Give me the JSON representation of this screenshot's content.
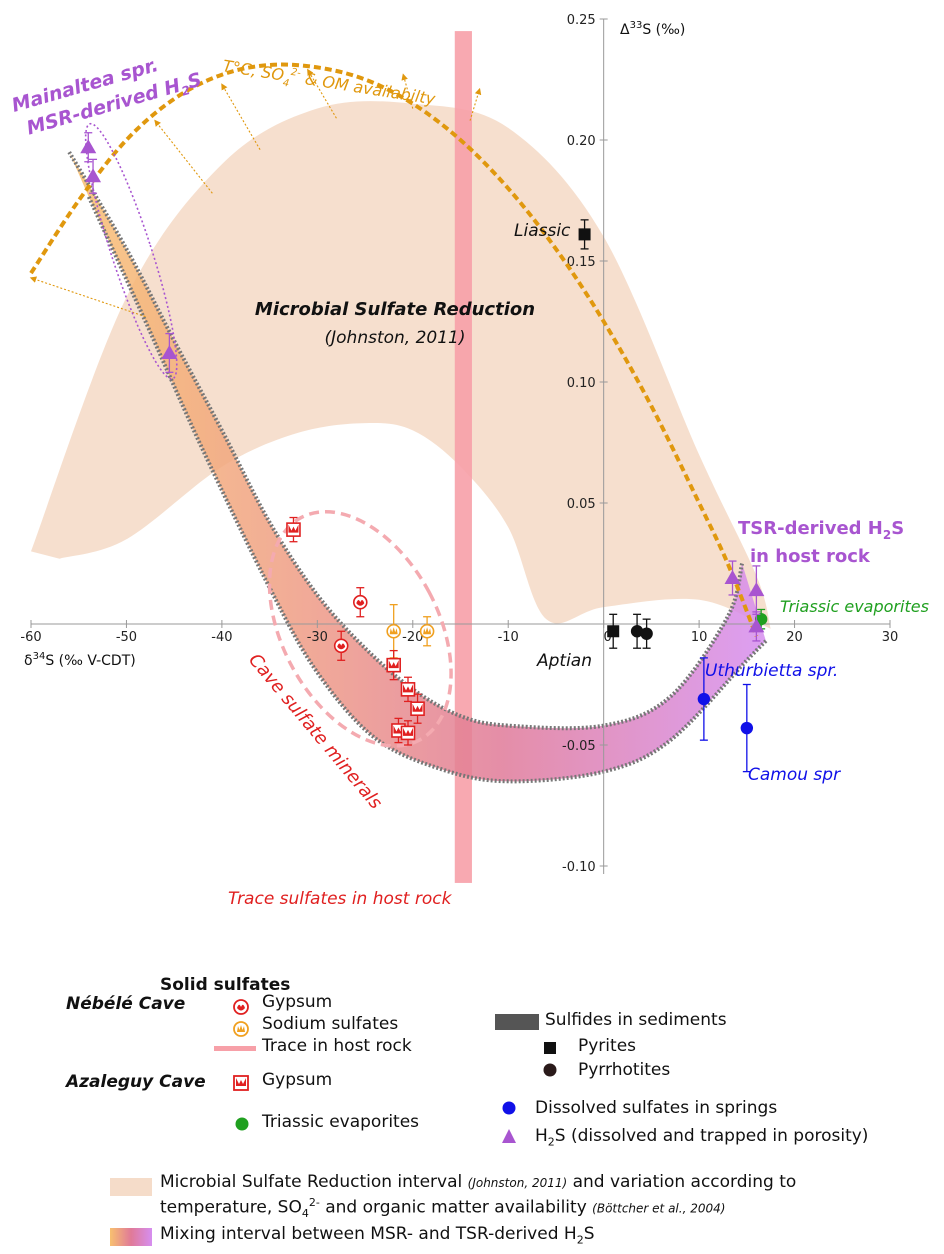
{
  "chart_data": {
    "type": "scatter",
    "xlabel": "δ34S (‰ V-CDT)",
    "ylabel": "Δ33S (‰)",
    "xlim": [
      -60,
      30
    ],
    "ylim": [
      -0.1,
      0.25
    ],
    "x_ticks": [
      -60,
      -50,
      -40,
      -30,
      -20,
      -10,
      0,
      10,
      20,
      30
    ],
    "y_ticks": [
      0.25,
      0.2,
      0.15,
      0.1,
      0.05,
      -0.05,
      -0.1
    ],
    "y_tick_labels": [
      "0.25",
      "0.20",
      "0.15",
      "0.10",
      "0.05",
      "-0.05",
      "-0.10"
    ],
    "colors": {
      "msr_band": "#f5dcc9",
      "msr_mix_start": "#f8c070",
      "mix_mid": "#e07a98",
      "tsr_mix_end": "#d68ef0",
      "trace_bar": "#f7a0a8",
      "orange_curve": "#e0980e",
      "purple": "#a855d0",
      "red": "#e02020",
      "orange_pts": "#f0a020",
      "blue": "#1010e8",
      "green": "#20a020",
      "black": "#111111"
    },
    "series": [
      {
        "name": "Gypsum (Nébélé Cave)",
        "marker": "gypsum-circle",
        "color": "#e02020",
        "points": [
          {
            "x": -25.5,
            "y": 0.009,
            "err": 0.006
          },
          {
            "x": -27.5,
            "y": -0.009,
            "err": 0.006
          }
        ]
      },
      {
        "name": "Sodium sulfates",
        "marker": "sodium-circle",
        "color": "#f0a020",
        "points": [
          {
            "x": -22,
            "y": -0.003,
            "err": 0.011
          },
          {
            "x": -18.5,
            "y": -0.003,
            "err": 0.006
          }
        ]
      },
      {
        "name": "Gypsum (Azaleguy Cave)",
        "marker": "gypsum-square",
        "color": "#e02020",
        "points": [
          {
            "x": -32.5,
            "y": 0.039,
            "err": 0.005
          },
          {
            "x": -22,
            "y": -0.017,
            "err": 0.006
          },
          {
            "x": -20.5,
            "y": -0.027,
            "err": 0.005
          },
          {
            "x": -19.5,
            "y": -0.035,
            "err": 0.006
          },
          {
            "x": -21.5,
            "y": -0.044,
            "err": 0.005
          },
          {
            "x": -20.5,
            "y": -0.045,
            "err": 0.005
          }
        ]
      },
      {
        "name": "Pyrites",
        "marker": "square",
        "color": "#111111",
        "points": [
          {
            "x": -2,
            "y": 0.161,
            "err": 0.006
          },
          {
            "x": 1,
            "y": -0.003,
            "err": 0.007
          }
        ]
      },
      {
        "name": "Pyrrhotites",
        "marker": "circle",
        "color": "#111111",
        "points": [
          {
            "x": 3.5,
            "y": -0.003,
            "err": 0.007
          },
          {
            "x": 4.5,
            "y": -0.004,
            "err": 0.006
          }
        ]
      },
      {
        "name": "Dissolved sulfates in springs",
        "marker": "circle",
        "color": "#1010e8",
        "points": [
          {
            "x": 10.5,
            "y": -0.031,
            "err": 0.017
          },
          {
            "x": 15,
            "y": -0.043,
            "err": 0.018
          }
        ]
      },
      {
        "name": "Triassic evaporites",
        "marker": "circle",
        "color": "#20a020",
        "points": [
          {
            "x": 16.5,
            "y": 0.002,
            "err": 0.004
          }
        ]
      },
      {
        "name": "H2S (dissolved and trapped in porosity)",
        "marker": "triangle",
        "color": "#a855d0",
        "points": [
          {
            "x": -54,
            "y": 0.197,
            "err": 0.006
          },
          {
            "x": -53.5,
            "y": 0.185,
            "err": 0.007
          },
          {
            "x": -45.5,
            "y": 0.112,
            "err": 0.008
          },
          {
            "x": 13.5,
            "y": 0.019,
            "err": 0.007
          },
          {
            "x": 16,
            "y": 0.014,
            "err": 0.01
          },
          {
            "x": 16,
            "y": -0.001,
            "err": 0.006
          }
        ]
      }
    ],
    "shaded_regions": {
      "msr_upper": [
        [
          -60,
          0.03
        ],
        [
          -50,
          0.135
        ],
        [
          -40,
          0.19
        ],
        [
          -30,
          0.213
        ],
        [
          -20,
          0.215
        ],
        [
          -10,
          0.205
        ],
        [
          0,
          0.16
        ],
        [
          10,
          0.07
        ],
        [
          16,
          0.02
        ],
        [
          17.5,
          -0.002
        ]
      ],
      "msr_lower": [
        [
          17.5,
          -0.002
        ],
        [
          10,
          0.01
        ],
        [
          0,
          0.007
        ],
        [
          -6,
          0.002
        ],
        [
          -10,
          0.04
        ],
        [
          -15,
          0.065
        ],
        [
          -20,
          0.08
        ],
        [
          -25,
          0.083
        ],
        [
          -32,
          0.079
        ],
        [
          -40,
          0.065
        ],
        [
          -50,
          0.035
        ],
        [
          -57,
          0.027
        ]
      ],
      "mix_band_upper": [
        [
          -56,
          0.195
        ],
        [
          -50,
          0.155
        ],
        [
          -45,
          0.117
        ],
        [
          -40,
          0.08
        ],
        [
          -35,
          0.042
        ],
        [
          -30,
          0.012
        ],
        [
          -25,
          -0.01
        ],
        [
          -20,
          -0.027
        ],
        [
          -15,
          -0.038
        ],
        [
          -10,
          -0.042
        ],
        [
          0,
          -0.042
        ],
        [
          7,
          -0.03
        ],
        [
          13,
          0.003
        ],
        [
          14.5,
          0.025
        ]
      ],
      "mix_band_lower": [
        [
          17,
          -0.007
        ],
        [
          15,
          -0.015
        ],
        [
          7,
          -0.048
        ],
        [
          0,
          -0.061
        ],
        [
          -10,
          -0.065
        ],
        [
          -17,
          -0.06
        ],
        [
          -24,
          -0.047
        ],
        [
          -30,
          -0.02
        ],
        [
          -35,
          0.015
        ],
        [
          -42,
          0.072
        ],
        [
          -48,
          0.125
        ],
        [
          -54,
          0.177
        ]
      ],
      "trace_bar_x": [
        -15.6,
        -13.8
      ],
      "orange_curve": [
        [
          -60,
          0.145
        ],
        [
          -55,
          0.175
        ],
        [
          -50,
          0.2
        ],
        [
          -45,
          0.217
        ],
        [
          -40,
          0.227
        ],
        [
          -35,
          0.231
        ],
        [
          -30,
          0.23
        ],
        [
          -25,
          0.225
        ],
        [
          -20,
          0.215
        ],
        [
          -15,
          0.2
        ],
        [
          -10,
          0.18
        ],
        [
          -5,
          0.155
        ],
        [
          0,
          0.125
        ],
        [
          5,
          0.09
        ],
        [
          10,
          0.05
        ],
        [
          13,
          0.025
        ],
        [
          16,
          -0.005
        ]
      ]
    },
    "annotations": {
      "msr_title": "Microbial Sulfate Reduction",
      "msr_ref": "(Johnston, 2011)",
      "curve_label_a": "T°C, SO",
      "curve_label_sub": "4",
      "curve_label_sup": "2-",
      "curve_label_b": " & OM availabilty",
      "mainaltea_1": "Mainaltea spr.",
      "mainaltea_2a": "MSR-derived H",
      "mainaltea_sub": "2",
      "mainaltea_2b": "S",
      "tsr_1a": "TSR-derived H",
      "tsr_sub": "2",
      "tsr_1b": "S",
      "tsr_2": "in host rock",
      "triassic": "Triassic evaporites",
      "uthurbietta": "Uthurbietta spr.",
      "camou": "Camou spr",
      "liassic": "Liassic",
      "aptian": "Aptian",
      "cave_minerals": "Cave sulfate minerals",
      "trace_label": "Trace sulfates in host rock",
      "xlabel_pre": "δ",
      "xlabel_sup": "34",
      "xlabel_post": "S (‰ V-CDT)",
      "ylabel_pre": "Δ",
      "ylabel_sup": "33",
      "ylabel_post": "S (‰)",
      "zero_tick": "0"
    }
  },
  "legend": {
    "solid_sulfates": "Solid sulfates",
    "nebele_cave": "Nébélé Cave",
    "gypsum": "Gypsum",
    "sodium_sulfates": "Sodium sulfates",
    "trace_host_rock": "Trace in host rock",
    "azaleguy_cave": "Azaleguy Cave",
    "gypsum_az": "Gypsum",
    "triassic_evaporites": "Triassic evaporites",
    "sulfides_sediments": "Sulfides in sediments",
    "pyrites": "Pyrites",
    "pyrrhotites": "Pyrrhotites",
    "dissolved_sulfates": "Dissolved sulfates in springs",
    "h2s_pre": "H",
    "h2s_sub": "2",
    "h2s_post": "S (dissolved and trapped in porosity)",
    "msr_line1_a": "Microbial Sulfate Reduction interval ",
    "msr_line1_ref": "(Johnston, 2011)",
    "msr_line1_b": " and variation according to",
    "msr_line2_a": "temperature, SO",
    "msr_line2_sub": "4",
    "msr_line2_sup": "2-",
    "msr_line2_b": " and organic matter availability ",
    "msr_line2_ref": "(Böttcher et al., 2004)",
    "mixing_pre": "Mixing interval between MSR- and TSR-derived H",
    "mixing_sub": "2",
    "mixing_post": "S"
  }
}
